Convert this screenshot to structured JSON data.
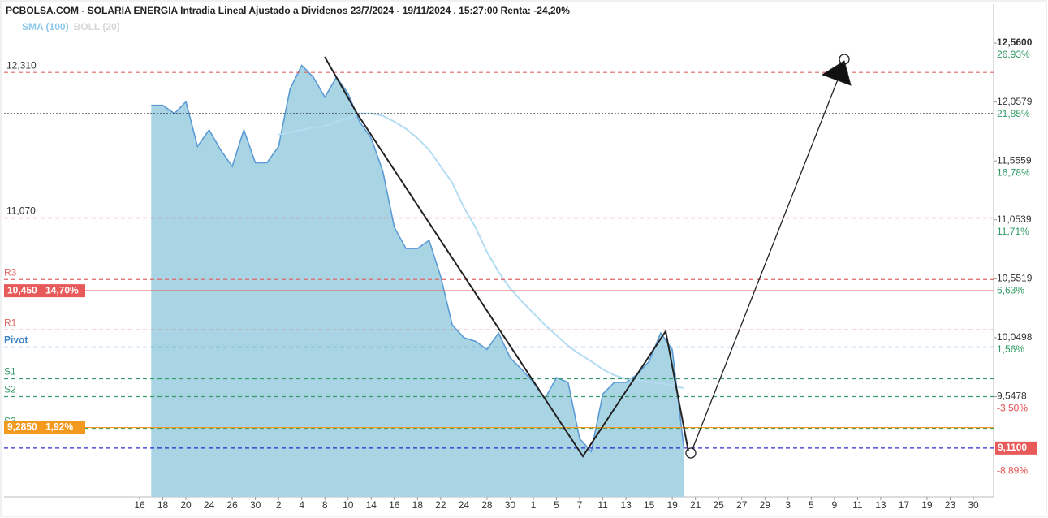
{
  "chart_data": {
    "type": "area",
    "title": "PCBOLSA.COM - SOLARIA ENERGIA Intradia Lineal Ajustado a Dividenos 23/7/2024 - 19/11/2024 , 15:27:00 Renta: -24,20%",
    "legend": [
      {
        "label": "SMA (100)",
        "color": "#8ec8ea"
      },
      {
        "label": "BOLL (20)",
        "color": "#d6d6d6"
      }
    ],
    "categories": [
      "16",
      null,
      "18",
      null,
      "20",
      null,
      "24",
      null,
      "26",
      null,
      "30",
      null,
      "2",
      null,
      "4",
      null,
      "8",
      null,
      "10",
      null,
      "14",
      null,
      "16",
      null,
      "18",
      null,
      "22",
      null,
      "24",
      null,
      "28",
      null,
      "30",
      null,
      "1",
      null,
      "5",
      null,
      "7",
      null,
      "11",
      null,
      "13",
      null,
      "15",
      null,
      "19",
      null,
      "21",
      null,
      "25",
      null,
      "27",
      null,
      "29",
      null,
      "3",
      null,
      "5",
      null,
      "9",
      null,
      "11",
      null,
      "13",
      null,
      "17",
      null,
      "19",
      null,
      "23",
      null,
      "30"
    ],
    "series": [
      {
        "color": "#5b9bd5",
        "fill": "#a9d4e4",
        "values": [
          null,
          12.03,
          12.03,
          11.96,
          12.06,
          11.68,
          11.82,
          11.65,
          11.51,
          11.82,
          11.54,
          11.54,
          11.68,
          12.17,
          12.37,
          12.27,
          12.1,
          12.27,
          12.13,
          11.89,
          11.75,
          11.47,
          10.99,
          10.81,
          10.81,
          10.88,
          10.57,
          10.16,
          10.05,
          10.02,
          9.95,
          10.09,
          9.88,
          9.78,
          9.67,
          9.53,
          9.71,
          9.67,
          9.19,
          9.08,
          9.57,
          9.67,
          9.67,
          9.74,
          9.85,
          10.09,
          9.95,
          9.11,
          null,
          null,
          null,
          null,
          null,
          null,
          null,
          null,
          null,
          null,
          null,
          null,
          null,
          null,
          null,
          null,
          null,
          null,
          null,
          null,
          null,
          null,
          null,
          null,
          null
        ]
      },
      {
        "color": "#b3dcf3",
        "values": [
          null,
          null,
          null,
          null,
          null,
          null,
          null,
          null,
          null,
          null,
          null,
          null,
          11.78,
          11.8,
          11.82,
          11.84,
          11.85,
          11.89,
          11.92,
          11.96,
          11.96,
          11.94,
          11.89,
          11.83,
          11.75,
          11.65,
          11.51,
          11.37,
          11.16,
          10.99,
          10.78,
          10.61,
          10.47,
          10.36,
          10.26,
          10.16,
          10.07,
          9.98,
          9.91,
          9.85,
          9.78,
          9.73,
          9.7,
          9.69,
          9.67,
          9.66,
          9.64,
          9.62,
          null,
          null,
          null,
          null,
          null,
          null,
          null,
          null,
          null,
          null,
          null,
          null,
          null,
          null,
          null,
          null,
          null,
          null,
          null,
          null,
          null,
          null,
          null,
          null,
          null
        ]
      }
    ],
    "ylim": [
      8.694,
      12.754
    ],
    "yticks": [
      {
        "value": 12.56,
        "label": "12,5600"
      },
      {
        "value": 12.0579,
        "label": "12,0579"
      },
      {
        "value": 11.5559,
        "label": "11,5559"
      },
      {
        "value": 11.0539,
        "label": "11,0539"
      },
      {
        "value": 10.5519,
        "label": "10,5519"
      },
      {
        "value": 10.0498,
        "label": "10,0498"
      },
      {
        "value": 9.5478,
        "label": "9,5478"
      }
    ],
    "y2lim": [
      -12.14,
      28.89
    ],
    "y2ticks": [
      {
        "value": 26.93,
        "label": "26,93%"
      },
      {
        "value": 21.85,
        "label": "21,85%"
      },
      {
        "value": 16.78,
        "label": "16,78%"
      },
      {
        "value": 11.71,
        "label": "11,71%"
      },
      {
        "value": 6.63,
        "label": "6,63%"
      },
      {
        "value": 1.56,
        "label": "1,56%"
      },
      {
        "value": -3.5,
        "label": "-3,50%"
      },
      {
        "value": -8.89,
        "label": "-8,89%"
      }
    ],
    "levels": [
      {
        "value": 12.31,
        "label": "12,310",
        "color": "#e06666",
        "style": "dashed"
      },
      {
        "value": 11.958,
        "color": "#000000",
        "style": "dotted"
      },
      {
        "value": 11.07,
        "label": "11,070",
        "color": "#e06666",
        "style": "dashed"
      },
      {
        "name": "R3",
        "value": 10.546,
        "color": "#e06666",
        "style": "dashed"
      },
      {
        "value": 10.45,
        "label": "10,450",
        "change": {
          "value": 14.7,
          "label": "14,70%"
        },
        "color": "#e85a5a",
        "style": "solid",
        "box": "left"
      },
      {
        "name": "R1",
        "value": 10.116,
        "color": "#e06666",
        "style": "dashed"
      },
      {
        "name": "Pivot",
        "value": 9.97,
        "color": "#3d85c6",
        "style": "dashed"
      },
      {
        "name": "S1",
        "value": 9.7,
        "color": "#3a9a6a",
        "style": "dashed"
      },
      {
        "name": "S2",
        "value": 9.548,
        "color": "#3a9a6a",
        "style": "dashed"
      },
      {
        "name": "S3",
        "value": 9.278,
        "color": "#3a9a6a",
        "style": "dashed"
      },
      {
        "value": 9.285,
        "label": "9,2850",
        "change": {
          "value": 1.92,
          "label": "1,92%"
        },
        "color": "#f39a1e",
        "style": "solid",
        "box": "left"
      },
      {
        "value": 9.11,
        "label": "9,1100",
        "color": "#2b2bd0",
        "box_color": "#e85a5a",
        "style": "dashed",
        "box": "right"
      }
    ]
  }
}
